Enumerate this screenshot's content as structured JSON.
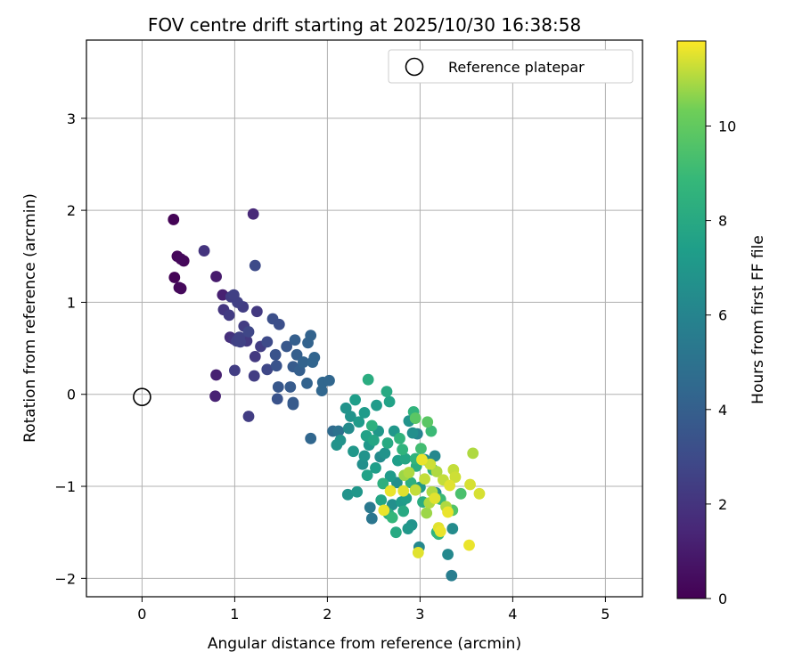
{
  "chart_data": {
    "type": "scatter",
    "title": "FOV centre drift starting at 2025/10/30 16:38:58",
    "xlabel": "Angular distance from reference (arcmin)",
    "ylabel": "Rotation from reference (arcmin)",
    "xlim": [
      -0.6,
      5.4
    ],
    "ylim": [
      -2.2,
      3.85
    ],
    "xticks": [
      0,
      1,
      2,
      3,
      4,
      5
    ],
    "yticks": [
      -2,
      -1,
      0,
      1,
      2,
      3
    ],
    "grid": true,
    "legend": {
      "location": "upper-right",
      "entries": [
        "Reference platepar"
      ]
    },
    "reference_point": {
      "label": "Reference platepar",
      "x": 0,
      "y": 0,
      "marker": "hollow-circle"
    },
    "colorbar": {
      "label": "Hours from first FF file",
      "colormap": "viridis",
      "min": 0,
      "max": 11.8,
      "ticks": [
        0,
        2,
        4,
        6,
        8,
        10
      ]
    },
    "points": [
      {
        "x": 0.34,
        "y": 1.9,
        "h": 0.1
      },
      {
        "x": 0.35,
        "y": 1.27,
        "h": 0.1
      },
      {
        "x": 0.38,
        "y": 1.5,
        "h": 0.2
      },
      {
        "x": 0.42,
        "y": 1.47,
        "h": 0.3
      },
      {
        "x": 0.45,
        "y": 1.45,
        "h": 0.2
      },
      {
        "x": 0.4,
        "y": 1.16,
        "h": 0.3
      },
      {
        "x": 0.42,
        "y": 1.15,
        "h": 0.3
      },
      {
        "x": 0.67,
        "y": 1.56,
        "h": 2.0
      },
      {
        "x": 0.8,
        "y": 1.28,
        "h": 1.0
      },
      {
        "x": 0.8,
        "y": 0.21,
        "h": 1.2
      },
      {
        "x": 0.79,
        "y": -0.02,
        "h": 1.3
      },
      {
        "x": 0.87,
        "y": 1.08,
        "h": 1.2
      },
      {
        "x": 0.88,
        "y": 0.92,
        "h": 2.1
      },
      {
        "x": 0.94,
        "y": 0.86,
        "h": 2.3
      },
      {
        "x": 0.96,
        "y": 1.06,
        "h": 2.4
      },
      {
        "x": 0.99,
        "y": 1.08,
        "h": 2.5
      },
      {
        "x": 1.03,
        "y": 1.0,
        "h": 2.5
      },
      {
        "x": 0.95,
        "y": 0.62,
        "h": 1.8
      },
      {
        "x": 0.99,
        "y": 0.6,
        "h": 2.0
      },
      {
        "x": 1.02,
        "y": 0.58,
        "h": 2.5
      },
      {
        "x": 1.06,
        "y": 0.57,
        "h": 2.6
      },
      {
        "x": 1.09,
        "y": 0.95,
        "h": 2.4
      },
      {
        "x": 1.1,
        "y": 0.74,
        "h": 2.4
      },
      {
        "x": 1.05,
        "y": 0.62,
        "h": 2.6
      },
      {
        "x": 1.15,
        "y": 0.68,
        "h": 2.8
      },
      {
        "x": 1.13,
        "y": 0.58,
        "h": 2.2
      },
      {
        "x": 1.0,
        "y": 0.26,
        "h": 2.4
      },
      {
        "x": 1.15,
        "y": -0.24,
        "h": 2.4
      },
      {
        "x": 1.22,
        "y": 0.41,
        "h": 2.2
      },
      {
        "x": 1.21,
        "y": 0.2,
        "h": 2.4
      },
      {
        "x": 1.2,
        "y": 1.96,
        "h": 1.5
      },
      {
        "x": 1.22,
        "y": 1.4,
        "h": 3.0
      },
      {
        "x": 1.24,
        "y": 0.9,
        "h": 2.2
      },
      {
        "x": 1.28,
        "y": 0.52,
        "h": 2.4
      },
      {
        "x": 1.35,
        "y": 0.57,
        "h": 3.0
      },
      {
        "x": 1.35,
        "y": 0.27,
        "h": 2.8
      },
      {
        "x": 1.41,
        "y": 0.82,
        "h": 3.2
      },
      {
        "x": 1.44,
        "y": 0.43,
        "h": 3.4
      },
      {
        "x": 1.45,
        "y": 0.31,
        "h": 3.4
      },
      {
        "x": 1.46,
        "y": -0.05,
        "h": 3.4
      },
      {
        "x": 1.47,
        "y": 0.08,
        "h": 3.6
      },
      {
        "x": 1.48,
        "y": 0.76,
        "h": 3.2
      },
      {
        "x": 1.56,
        "y": 0.52,
        "h": 3.6
      },
      {
        "x": 1.6,
        "y": 0.08,
        "h": 3.8
      },
      {
        "x": 1.63,
        "y": 0.3,
        "h": 3.8
      },
      {
        "x": 1.63,
        "y": -0.09,
        "h": 3.8
      },
      {
        "x": 1.63,
        "y": -0.11,
        "h": 3.8
      },
      {
        "x": 1.65,
        "y": 0.59,
        "h": 4.0
      },
      {
        "x": 1.67,
        "y": 0.43,
        "h": 4.0
      },
      {
        "x": 1.7,
        "y": 0.26,
        "h": 4.0
      },
      {
        "x": 1.74,
        "y": 0.35,
        "h": 4.2
      },
      {
        "x": 1.78,
        "y": 0.12,
        "h": 4.2
      },
      {
        "x": 1.79,
        "y": 0.56,
        "h": 4.2
      },
      {
        "x": 1.82,
        "y": 0.64,
        "h": 4.2
      },
      {
        "x": 1.82,
        "y": -0.48,
        "h": 4.4
      },
      {
        "x": 1.84,
        "y": 0.35,
        "h": 4.3
      },
      {
        "x": 1.86,
        "y": 0.4,
        "h": 4.3
      },
      {
        "x": 1.94,
        "y": 0.04,
        "h": 4.4
      },
      {
        "x": 1.95,
        "y": 0.13,
        "h": 4.4
      },
      {
        "x": 2.02,
        "y": 0.15,
        "h": 4.4
      },
      {
        "x": 2.06,
        "y": -0.4,
        "h": 4.6
      },
      {
        "x": 2.12,
        "y": -0.4,
        "h": 5.0
      },
      {
        "x": 2.1,
        "y": -0.55,
        "h": 6.8
      },
      {
        "x": 2.14,
        "y": -0.5,
        "h": 6.8
      },
      {
        "x": 2.2,
        "y": -0.15,
        "h": 6.8
      },
      {
        "x": 2.22,
        "y": -1.09,
        "h": 6.8
      },
      {
        "x": 2.25,
        "y": -0.24,
        "h": 6.8
      },
      {
        "x": 2.23,
        "y": -0.37,
        "h": 6.4
      },
      {
        "x": 2.28,
        "y": -0.62,
        "h": 7.0
      },
      {
        "x": 2.3,
        "y": -0.06,
        "h": 7.4
      },
      {
        "x": 2.32,
        "y": -1.06,
        "h": 7.0
      },
      {
        "x": 2.34,
        "y": -0.3,
        "h": 7.2
      },
      {
        "x": 2.38,
        "y": -0.76,
        "h": 6.6
      },
      {
        "x": 2.4,
        "y": -0.2,
        "h": 7.2
      },
      {
        "x": 2.4,
        "y": -0.67,
        "h": 6.8
      },
      {
        "x": 2.42,
        "y": -0.45,
        "h": 7.6
      },
      {
        "x": 2.43,
        "y": -0.88,
        "h": 7.6
      },
      {
        "x": 2.44,
        "y": 0.16,
        "h": 8.2
      },
      {
        "x": 2.45,
        "y": -0.55,
        "h": 7.0
      },
      {
        "x": 2.46,
        "y": -1.23,
        "h": 5.4
      },
      {
        "x": 2.48,
        "y": -0.34,
        "h": 8.4
      },
      {
        "x": 2.48,
        "y": -1.35,
        "h": 5.2
      },
      {
        "x": 2.5,
        "y": -0.5,
        "h": 7.8
      },
      {
        "x": 2.52,
        "y": -0.8,
        "h": 7.4
      },
      {
        "x": 2.53,
        "y": -0.12,
        "h": 7.2
      },
      {
        "x": 2.55,
        "y": -0.4,
        "h": 7.0
      },
      {
        "x": 2.57,
        "y": -0.68,
        "h": 6.4
      },
      {
        "x": 2.58,
        "y": -1.15,
        "h": 7.8
      },
      {
        "x": 2.6,
        "y": -0.97,
        "h": 8.4
      },
      {
        "x": 2.62,
        "y": -0.64,
        "h": 6.8
      },
      {
        "x": 2.64,
        "y": 0.03,
        "h": 8.0
      },
      {
        "x": 2.65,
        "y": -0.53,
        "h": 8.0
      },
      {
        "x": 2.66,
        "y": -1.3,
        "h": 8.2
      },
      {
        "x": 2.67,
        "y": -0.08,
        "h": 7.6
      },
      {
        "x": 2.68,
        "y": -0.89,
        "h": 7.2
      },
      {
        "x": 2.7,
        "y": -1.34,
        "h": 8.8
      },
      {
        "x": 2.7,
        "y": -1.2,
        "h": 6.6
      },
      {
        "x": 2.72,
        "y": -0.4,
        "h": 7.0
      },
      {
        "x": 2.74,
        "y": -1.5,
        "h": 8.0
      },
      {
        "x": 2.75,
        "y": -0.96,
        "h": 6.6
      },
      {
        "x": 2.76,
        "y": -0.72,
        "h": 7.4
      },
      {
        "x": 2.78,
        "y": -0.48,
        "h": 8.6
      },
      {
        "x": 2.8,
        "y": -1.17,
        "h": 7.2
      },
      {
        "x": 2.81,
        "y": -0.6,
        "h": 8.6
      },
      {
        "x": 2.82,
        "y": -1.27,
        "h": 8.0
      },
      {
        "x": 2.84,
        "y": -0.7,
        "h": 7.8
      },
      {
        "x": 2.85,
        "y": -1.13,
        "h": 7.4
      },
      {
        "x": 2.87,
        "y": -1.46,
        "h": 7.0
      },
      {
        "x": 2.88,
        "y": -0.29,
        "h": 6.8
      },
      {
        "x": 2.9,
        "y": -0.96,
        "h": 8.4
      },
      {
        "x": 2.91,
        "y": -1.42,
        "h": 6.8
      },
      {
        "x": 2.92,
        "y": -0.42,
        "h": 6.6
      },
      {
        "x": 2.93,
        "y": -0.19,
        "h": 8.6
      },
      {
        "x": 2.95,
        "y": -0.7,
        "h": 8.6
      },
      {
        "x": 2.96,
        "y": -0.78,
        "h": 8.2
      },
      {
        "x": 2.97,
        "y": -0.43,
        "h": 6.0
      },
      {
        "x": 2.99,
        "y": -1.66,
        "h": 6.2
      },
      {
        "x": 3.0,
        "y": -1.01,
        "h": 7.0
      },
      {
        "x": 3.01,
        "y": -0.59,
        "h": 9.2
      },
      {
        "x": 3.03,
        "y": -1.17,
        "h": 8.2
      },
      {
        "x": 3.05,
        "y": -0.71,
        "h": 6.6
      },
      {
        "x": 3.08,
        "y": -0.3,
        "h": 9.8
      },
      {
        "x": 3.12,
        "y": -0.4,
        "h": 9.0
      },
      {
        "x": 3.14,
        "y": -0.82,
        "h": 8.6
      },
      {
        "x": 3.16,
        "y": -0.67,
        "h": 6.2
      },
      {
        "x": 3.17,
        "y": -1.07,
        "h": 6.6
      },
      {
        "x": 3.18,
        "y": -1.5,
        "h": 8.6
      },
      {
        "x": 3.2,
        "y": -1.52,
        "h": 8.8
      },
      {
        "x": 3.22,
        "y": -1.14,
        "h": 9.0
      },
      {
        "x": 3.3,
        "y": -1.74,
        "h": 6.2
      },
      {
        "x": 3.34,
        "y": -1.97,
        "h": 5.6
      },
      {
        "x": 3.35,
        "y": -1.46,
        "h": 6.4
      },
      {
        "x": 3.35,
        "y": -1.26,
        "h": 9.6
      },
      {
        "x": 3.44,
        "y": -1.08,
        "h": 9.4
      },
      {
        "x": 2.95,
        "y": -0.26,
        "h": 9.8
      },
      {
        "x": 2.83,
        "y": -0.88,
        "h": 10.8
      },
      {
        "x": 2.88,
        "y": -0.85,
        "h": 11.0
      },
      {
        "x": 2.95,
        "y": -1.04,
        "h": 11.2
      },
      {
        "x": 2.98,
        "y": -1.72,
        "h": 11.5
      },
      {
        "x": 3.02,
        "y": -0.71,
        "h": 11.6
      },
      {
        "x": 3.05,
        "y": -0.92,
        "h": 11.2
      },
      {
        "x": 3.07,
        "y": -1.29,
        "h": 10.8
      },
      {
        "x": 3.1,
        "y": -1.18,
        "h": 11.0
      },
      {
        "x": 3.11,
        "y": -0.76,
        "h": 11.3
      },
      {
        "x": 3.13,
        "y": -1.06,
        "h": 11.0
      },
      {
        "x": 3.16,
        "y": -1.13,
        "h": 11.5
      },
      {
        "x": 3.18,
        "y": -0.84,
        "h": 11.0
      },
      {
        "x": 3.2,
        "y": -1.45,
        "h": 11.5
      },
      {
        "x": 3.22,
        "y": -1.49,
        "h": 11.6
      },
      {
        "x": 3.25,
        "y": -0.93,
        "h": 11.2
      },
      {
        "x": 3.28,
        "y": -1.22,
        "h": 11.0
      },
      {
        "x": 3.3,
        "y": -1.28,
        "h": 11.6
      },
      {
        "x": 3.32,
        "y": -0.99,
        "h": 11.5
      },
      {
        "x": 3.36,
        "y": -0.82,
        "h": 11.2
      },
      {
        "x": 3.38,
        "y": -0.9,
        "h": 11.3
      },
      {
        "x": 3.53,
        "y": -1.64,
        "h": 11.6
      },
      {
        "x": 3.54,
        "y": -0.98,
        "h": 11.4
      },
      {
        "x": 3.57,
        "y": -0.64,
        "h": 11.0
      },
      {
        "x": 3.64,
        "y": -1.08,
        "h": 11.4
      },
      {
        "x": 2.61,
        "y": -1.26,
        "h": 11.6
      },
      {
        "x": 2.68,
        "y": -1.05,
        "h": 11.6
      },
      {
        "x": 2.82,
        "y": -1.05,
        "h": 11.5
      }
    ]
  }
}
